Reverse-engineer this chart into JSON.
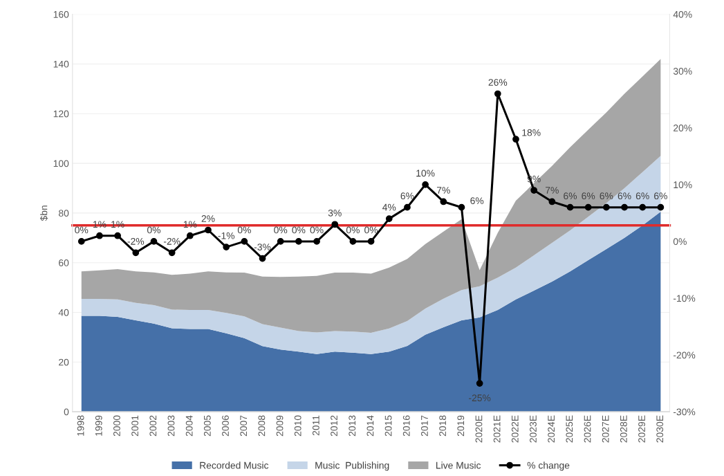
{
  "chart_data": {
    "type": "area",
    "stacked": true,
    "ylabel": "$bn",
    "categories": [
      "1998",
      "1999",
      "2000",
      "2001",
      "2002",
      "2003",
      "2004",
      "2005",
      "2006",
      "2007",
      "2008",
      "2009",
      "2010",
      "2011",
      "2012",
      "2013",
      "2014",
      "2015",
      "2016",
      "2017",
      "2018",
      "2019",
      "2020E",
      "2021E",
      "2022E",
      "2023E",
      "2024E",
      "2025E",
      "2026E",
      "2027E",
      "2028E",
      "2029E",
      "2030E"
    ],
    "series": [
      {
        "name": "Recorded Music",
        "color": "#4570a8",
        "values": [
          38.6,
          38.6,
          38.2,
          36.8,
          35.5,
          33.6,
          33.3,
          33.3,
          31.6,
          29.6,
          26.4,
          25.0,
          24.2,
          23.2,
          24.2,
          23.8,
          23.2,
          24.2,
          26.5,
          31,
          34,
          36.8,
          38,
          41,
          45.2,
          48.8,
          52.4,
          56.5,
          61,
          65.5,
          70,
          75,
          80.5
        ]
      },
      {
        "name": "Music  Publishing",
        "color": "#c5d5e8",
        "values": [
          6.8,
          6.8,
          7.0,
          7.0,
          7.4,
          7.5,
          7.7,
          7.7,
          8.2,
          8.8,
          8.9,
          8.9,
          8.3,
          8.7,
          8.3,
          8.5,
          8.6,
          9.3,
          10.0,
          10.5,
          11.5,
          12.2,
          12.5,
          13,
          12.8,
          14.2,
          15.6,
          16.5,
          17.5,
          18.5,
          20,
          21.5,
          22.5
        ]
      },
      {
        "name": "Live Music",
        "color": "#a6a6a6",
        "values": [
          11.1,
          11.5,
          12.2,
          12.7,
          13.2,
          14.0,
          14.6,
          15.5,
          16.3,
          17.6,
          19.1,
          20.4,
          21.9,
          22.8,
          23.5,
          23.7,
          23.8,
          24.5,
          25.0,
          26.0,
          27.0,
          28.5,
          6.5,
          18,
          27,
          29,
          31,
          33.5,
          35,
          36.5,
          38,
          38.5,
          39
        ]
      },
      {
        "name": "% change",
        "type": "line",
        "axis": "y2",
        "color": "#000000",
        "marker": "circle",
        "values": [
          0,
          1,
          1,
          -2,
          0,
          -2,
          1,
          2,
          -1,
          0,
          -3,
          0,
          0,
          0,
          3,
          0,
          0,
          4,
          6,
          10,
          7,
          6,
          -25,
          26,
          18,
          9,
          7,
          6,
          6,
          6,
          6,
          6,
          6
        ],
        "value_labels": [
          "0%",
          "1%",
          "1%",
          "-2%",
          "0%",
          "-2%",
          "1%",
          "2%",
          "-1%",
          "0%",
          "-3%",
          "0%",
          "0%",
          "0%",
          "3%",
          "0%",
          "0%",
          "4%",
          "6%",
          "10%",
          "7%",
          "6%",
          "-25%",
          "26%",
          "18%",
          "9%",
          "7%",
          "6%",
          "6%",
          "6%",
          "6%",
          "6%",
          "6%"
        ]
      }
    ],
    "ylim": [
      0,
      160
    ],
    "yticks": [
      0,
      20,
      40,
      60,
      80,
      100,
      120,
      140,
      160
    ],
    "y2lim": [
      -30,
      40
    ],
    "y2ticks": [
      {
        "value": -30,
        "label": "-30%"
      },
      {
        "value": -20,
        "label": "-20%"
      },
      {
        "value": -10,
        "label": "-10%"
      },
      {
        "value": 0,
        "label": "0%"
      },
      {
        "value": 10,
        "label": "10%"
      },
      {
        "value": 20,
        "label": "20%"
      },
      {
        "value": 30,
        "label": "30%"
      },
      {
        "value": 40,
        "label": "40%"
      }
    ],
    "ref_lines": [
      {
        "axis": "y",
        "value": 75,
        "color": "#e02b2b",
        "line_style": "solid"
      }
    ],
    "grid": "y",
    "legend": "bottom"
  }
}
